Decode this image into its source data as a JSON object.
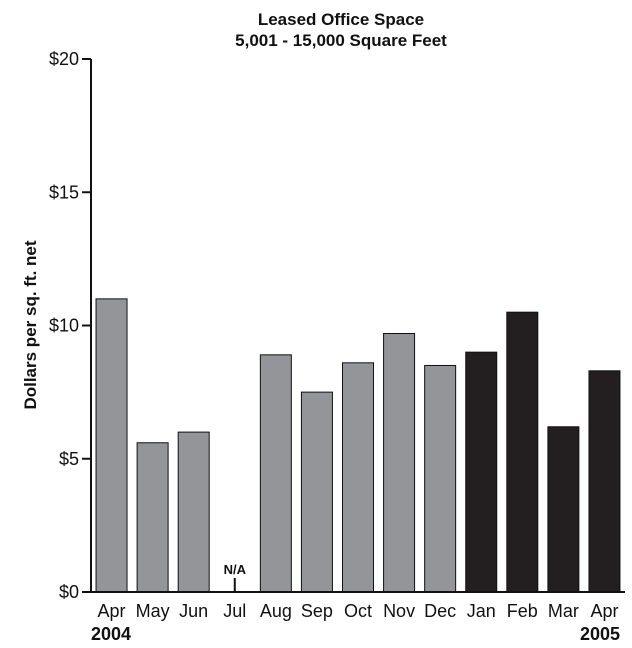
{
  "chart_data": {
    "type": "bar",
    "title": "Leased Office Space",
    "subtitle": "5,001 - 15,000 Square Feet",
    "ylabel": "Dollars per sq. ft. net",
    "xlabel": "",
    "ylim": [
      0,
      20
    ],
    "yticks": [
      "$0",
      "$5",
      "$10",
      "$15",
      "$20"
    ],
    "ytick_values": [
      0,
      5,
      10,
      15,
      20
    ],
    "categories": [
      "Apr",
      "May",
      "Jun",
      "Jul",
      "Aug",
      "Sep",
      "Oct",
      "Nov",
      "Dec",
      "Jan",
      "Feb",
      "Mar",
      "Apr"
    ],
    "values": [
      11.0,
      5.6,
      6.0,
      null,
      8.9,
      7.5,
      8.6,
      9.7,
      8.5,
      9.0,
      10.5,
      6.2,
      8.3
    ],
    "na_label": "N/A",
    "bar_years": [
      2004,
      2004,
      2004,
      2004,
      2004,
      2004,
      2004,
      2004,
      2004,
      2005,
      2005,
      2005,
      2005
    ],
    "year_labels": {
      "start": "2004",
      "end": "2005"
    },
    "colors": {
      "2004": "#939598",
      "2005": "#231f20",
      "axis": "#111111"
    },
    "grid": false
  }
}
